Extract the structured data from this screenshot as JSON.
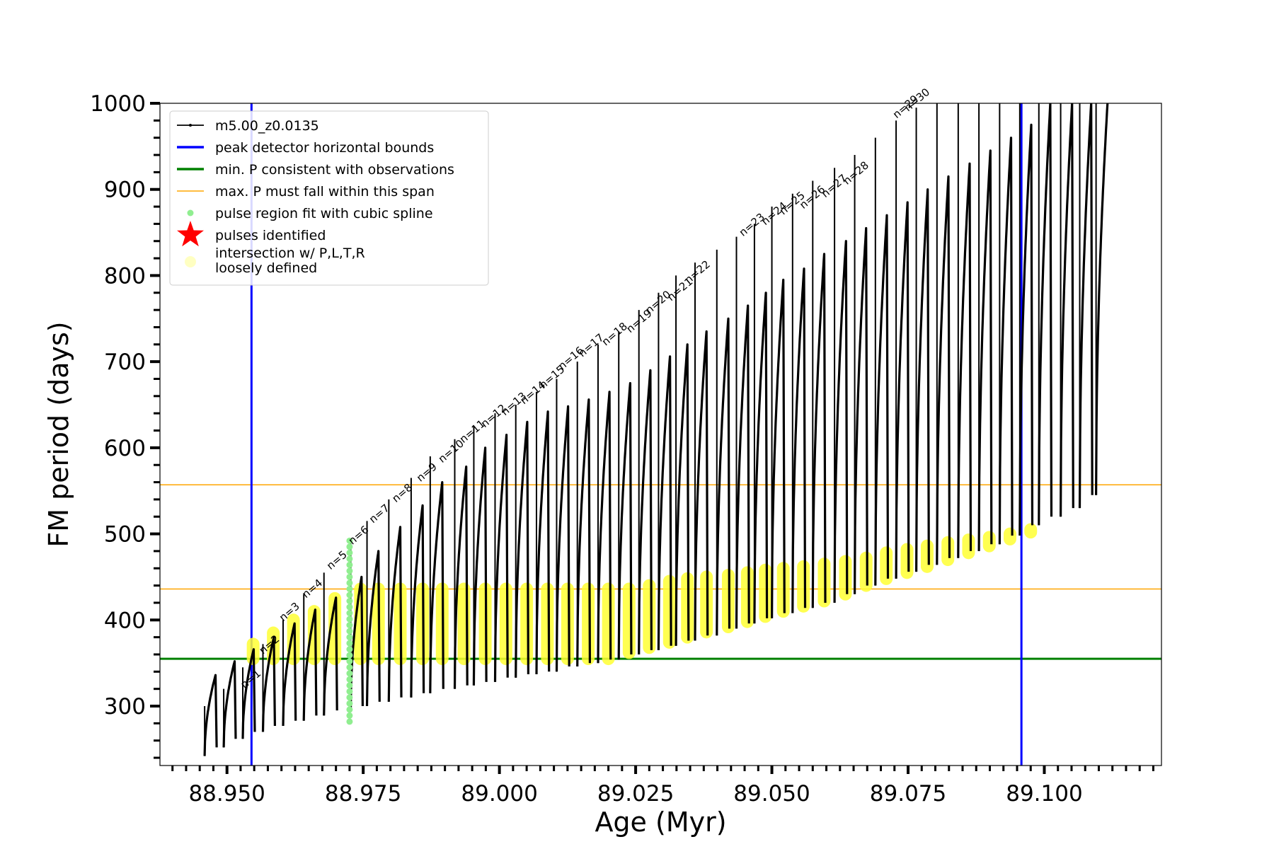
{
  "chart_data": {
    "type": "line",
    "xlabel": "Age (Myr)",
    "ylabel": "FM period (days)",
    "xlim": [
      88.9377,
      89.1215
    ],
    "ylim": [
      231,
      1000
    ],
    "xticks": [
      {
        "value": 88.95,
        "label": "88.950"
      },
      {
        "value": 88.975,
        "label": "88.975"
      },
      {
        "value": 89.0,
        "label": "89.000"
      },
      {
        "value": 89.025,
        "label": "89.025"
      },
      {
        "value": 89.05,
        "label": "89.050"
      },
      {
        "value": 89.075,
        "label": "89.075"
      },
      {
        "value": 89.1,
        "label": "89.100"
      }
    ],
    "x_minor_step": 0.0025,
    "yticks": [
      {
        "value": 300,
        "label": "300"
      },
      {
        "value": 400,
        "label": "400"
      },
      {
        "value": 500,
        "label": "500"
      },
      {
        "value": 600,
        "label": "600"
      },
      {
        "value": 700,
        "label": "700"
      },
      {
        "value": 800,
        "label": "800"
      },
      {
        "value": 900,
        "label": "900"
      },
      {
        "value": 1000,
        "label": "1000"
      }
    ],
    "y_minor_step": 20,
    "grid": false,
    "legend_position": "top-left",
    "legend": [
      {
        "label": "m5.00_z0.0135",
        "kind": "line-marker",
        "color": "#000000"
      },
      {
        "label": "peak detector horizontal bounds",
        "kind": "line",
        "color": "#0000ff"
      },
      {
        "label": "min. P consistent with observations",
        "kind": "line",
        "color": "#008000"
      },
      {
        "label": "max. P must fall within this span",
        "kind": "thin-line",
        "color": "#ffa500"
      },
      {
        "label": "pulse region fit with cubic spline",
        "kind": "dot",
        "color": "#90ee90"
      },
      {
        "label": "pulses identified",
        "kind": "star",
        "color": "#ff0000"
      },
      {
        "label": "intersection w/ P,L,T,R",
        "label2": "loosely defined",
        "kind": "circle",
        "color": "#ffff99"
      }
    ],
    "vertical_lines": [
      {
        "x": 88.9545,
        "color": "#0000ff"
      },
      {
        "x": 89.0958,
        "color": "#0000ff"
      }
    ],
    "horizontal_lines": [
      {
        "y": 355,
        "color": "#008000",
        "width": 3
      },
      {
        "y": 436,
        "color": "#ffa500",
        "width": 1.5
      },
      {
        "y": 557,
        "color": "#ffa500",
        "width": 1.5
      }
    ],
    "pulse_label_ages": [
      88.9532,
      88.9566,
      88.9603,
      88.9645,
      88.969,
      88.973,
      88.9768,
      88.981,
      88.9855,
      88.9895,
      88.9934,
      88.9973,
      89.001,
      89.0045,
      89.008,
      89.0115,
      89.0152,
      89.0195,
      89.024,
      89.0275,
      89.0315,
      89.0347,
      89.0447,
      89.0488,
      89.0521,
      89.0558,
      89.0598,
      89.0638,
      89.0729,
      89.075
    ],
    "pulse_labels": [
      "n=1",
      "n=2",
      "n=3",
      "n=4",
      "n=5",
      "n=6",
      "n=7",
      "n=8",
      "n=9",
      "n=10",
      "n=11",
      "n=12",
      "n=13",
      "n=14",
      "n=15",
      "n=16",
      "n=17",
      "n=18",
      "n=19",
      "n=20",
      "n=21",
      "n=22",
      "n=23",
      "n=24",
      "n=25",
      "n=26",
      "n=27",
      "n=28",
      "n=29",
      "n=30"
    ],
    "pulse_label_periods": [
      320,
      360,
      398,
      425,
      458,
      487,
      512,
      536,
      560,
      582,
      605,
      623,
      637,
      650,
      668,
      690,
      705,
      718,
      733,
      755,
      770,
      790,
      845,
      858,
      870,
      877,
      890,
      905,
      982,
      990
    ],
    "series": [
      {
        "name": "m5.00_z0.0135",
        "color": "#000000",
        "cycles": [
          {
            "start": 88.9459,
            "peak_age": 88.9479,
            "period_start": 242,
            "period_peak": 336,
            "spike": 300
          },
          {
            "start": 88.9494,
            "peak_age": 88.9514,
            "period_start": 252,
            "period_peak": 352,
            "spike": 320
          },
          {
            "start": 88.9529,
            "peak_age": 88.9549,
            "period_start": 262,
            "period_peak": 366,
            "spike": 345
          },
          {
            "start": 88.9566,
            "peak_age": 88.9586,
            "period_start": 270,
            "period_peak": 380,
            "spike": 372
          },
          {
            "start": 88.9603,
            "peak_age": 88.9624,
            "period_start": 277,
            "period_peak": 396,
            "spike": 400
          },
          {
            "start": 88.9641,
            "peak_age": 88.9662,
            "period_start": 283,
            "period_peak": 412,
            "spike": 430
          },
          {
            "start": 88.9678,
            "peak_age": 88.97,
            "period_start": 289,
            "period_peak": 426,
            "spike": 455
          },
          {
            "start": 88.9727,
            "peak_age": 88.9747,
            "period_start": 295,
            "period_peak": 450,
            "spike": 490
          },
          {
            "start": 88.9757,
            "peak_age": 88.9778,
            "period_start": 300,
            "period_peak": 480,
            "spike": 515
          },
          {
            "start": 88.9797,
            "peak_age": 88.9818,
            "period_start": 305,
            "period_peak": 508,
            "spike": 540
          },
          {
            "start": 88.9838,
            "peak_age": 88.9859,
            "period_start": 310,
            "period_peak": 533,
            "spike": 565
          },
          {
            "start": 88.9873,
            "peak_age": 88.9895,
            "period_start": 315,
            "period_peak": 560,
            "spike": 590
          },
          {
            "start": 88.9918,
            "peak_age": 88.9939,
            "period_start": 320,
            "period_peak": 578,
            "spike": 610
          },
          {
            "start": 88.9953,
            "peak_age": 88.9974,
            "period_start": 324,
            "period_peak": 600,
            "spike": 625
          },
          {
            "start": 88.9992,
            "peak_age": 89.0013,
            "period_start": 328,
            "period_peak": 615,
            "spike": 640
          },
          {
            "start": 89.003,
            "peak_age": 89.0051,
            "period_start": 333,
            "period_peak": 630,
            "spike": 650
          },
          {
            "start": 89.0068,
            "peak_age": 89.0089,
            "period_start": 337,
            "period_peak": 642,
            "spike": 665
          },
          {
            "start": 89.0105,
            "peak_age": 89.0126,
            "period_start": 340,
            "period_peak": 648,
            "spike": 680
          },
          {
            "start": 89.0143,
            "peak_age": 89.0164,
            "period_start": 346,
            "period_peak": 656,
            "spike": 700
          },
          {
            "start": 89.0181,
            "peak_age": 89.0202,
            "period_start": 350,
            "period_peak": 665,
            "spike": 720
          },
          {
            "start": 89.0219,
            "peak_age": 89.024,
            "period_start": 354,
            "period_peak": 675,
            "spike": 735
          },
          {
            "start": 89.0256,
            "peak_age": 89.0277,
            "period_start": 360,
            "period_peak": 690,
            "spike": 760
          },
          {
            "start": 89.0292,
            "peak_age": 89.0313,
            "period_start": 365,
            "period_peak": 706,
            "spike": 780
          },
          {
            "start": 89.0324,
            "peak_age": 89.0345,
            "period_start": 370,
            "period_peak": 720,
            "spike": 800
          },
          {
            "start": 89.0359,
            "peak_age": 89.038,
            "period_start": 376,
            "period_peak": 735,
            "spike": 815
          },
          {
            "start": 89.0399,
            "peak_age": 89.042,
            "period_start": 382,
            "period_peak": 750,
            "spike": 830
          },
          {
            "start": 89.0435,
            "peak_age": 89.0456,
            "period_start": 390,
            "period_peak": 765,
            "spike": 845
          },
          {
            "start": 89.0468,
            "peak_age": 89.0489,
            "period_start": 396,
            "period_peak": 780,
            "spike": 860
          },
          {
            "start": 89.05,
            "peak_age": 89.0521,
            "period_start": 402,
            "period_peak": 795,
            "spike": 880
          },
          {
            "start": 89.0538,
            "peak_age": 89.0559,
            "period_start": 408,
            "period_peak": 808,
            "spike": 895
          },
          {
            "start": 89.0575,
            "peak_age": 89.0596,
            "period_start": 414,
            "period_peak": 825,
            "spike": 910
          },
          {
            "start": 89.0615,
            "peak_age": 89.0636,
            "period_start": 420,
            "period_peak": 840,
            "spike": 925
          },
          {
            "start": 89.0652,
            "peak_age": 89.0673,
            "period_start": 430,
            "period_peak": 855,
            "spike": 940
          },
          {
            "start": 89.069,
            "peak_age": 89.0711,
            "period_start": 440,
            "period_peak": 870,
            "spike": 960
          },
          {
            "start": 89.0728,
            "peak_age": 89.0749,
            "period_start": 448,
            "period_peak": 885,
            "spike": 980
          },
          {
            "start": 89.0765,
            "peak_age": 89.0786,
            "period_start": 456,
            "period_peak": 900,
            "spike": 995
          },
          {
            "start": 89.0803,
            "peak_age": 89.0824,
            "period_start": 464,
            "period_peak": 915,
            "spike": 1000
          },
          {
            "start": 89.0842,
            "peak_age": 89.0863,
            "period_start": 472,
            "period_peak": 930,
            "spike": 1000
          },
          {
            "start": 89.088,
            "peak_age": 89.0901,
            "period_start": 480,
            "period_peak": 945,
            "spike": 1000
          },
          {
            "start": 89.0918,
            "peak_age": 89.0939,
            "period_start": 488,
            "period_peak": 960,
            "spike": 1000
          },
          {
            "start": 89.0955,
            "peak_age": 89.0976,
            "period_start": 498,
            "period_peak": 975,
            "spike": 1000
          },
          {
            "start": 89.099,
            "peak_age": 89.1011,
            "period_start": 510,
            "period_peak": 1000,
            "spike": 1000
          },
          {
            "start": 89.103,
            "peak_age": 89.1051,
            "period_start": 520,
            "period_peak": 1000,
            "spike": 1000
          },
          {
            "start": 89.1065,
            "peak_age": 89.1086,
            "period_start": 530,
            "period_peak": 1000,
            "spike": 1000
          },
          {
            "start": 89.1095,
            "peak_age": 89.1116,
            "period_start": 545,
            "period_peak": 1000,
            "spike": 1000
          }
        ]
      }
    ],
    "spline_region": {
      "age": 88.9725,
      "period_min": 282,
      "period_max": 492
    },
    "loose_intersections": [
      {
        "age": 88.9548,
        "pmin": 355,
        "pmax": 372
      },
      {
        "age": 88.9585,
        "pmin": 355,
        "pmax": 385
      },
      {
        "age": 88.9622,
        "pmin": 355,
        "pmax": 400
      },
      {
        "age": 88.966,
        "pmin": 355,
        "pmax": 410
      },
      {
        "age": 88.9698,
        "pmin": 355,
        "pmax": 425
      },
      {
        "age": 88.9745,
        "pmin": 355,
        "pmax": 436
      },
      {
        "age": 88.9778,
        "pmin": 355,
        "pmax": 436
      },
      {
        "age": 88.9818,
        "pmin": 355,
        "pmax": 436
      },
      {
        "age": 88.9859,
        "pmin": 355,
        "pmax": 436
      },
      {
        "age": 88.9895,
        "pmin": 355,
        "pmax": 436
      },
      {
        "age": 88.9935,
        "pmin": 355,
        "pmax": 436
      },
      {
        "age": 88.9974,
        "pmin": 355,
        "pmax": 436
      },
      {
        "age": 89.0012,
        "pmin": 355,
        "pmax": 436
      },
      {
        "age": 89.005,
        "pmin": 355,
        "pmax": 436
      },
      {
        "age": 89.0088,
        "pmin": 355,
        "pmax": 436
      },
      {
        "age": 89.0125,
        "pmin": 355,
        "pmax": 436
      },
      {
        "age": 89.0163,
        "pmin": 355,
        "pmax": 436
      },
      {
        "age": 89.02,
        "pmin": 355,
        "pmax": 436
      },
      {
        "age": 89.0238,
        "pmin": 362,
        "pmax": 436
      },
      {
        "age": 89.0275,
        "pmin": 368,
        "pmax": 440
      },
      {
        "age": 89.0312,
        "pmin": 374,
        "pmax": 445
      },
      {
        "age": 89.0345,
        "pmin": 380,
        "pmax": 448
      },
      {
        "age": 89.038,
        "pmin": 386,
        "pmax": 450
      },
      {
        "age": 89.042,
        "pmin": 392,
        "pmax": 452
      },
      {
        "age": 89.0455,
        "pmin": 398,
        "pmax": 455
      },
      {
        "age": 89.0488,
        "pmin": 404,
        "pmax": 458
      },
      {
        "age": 89.0521,
        "pmin": 410,
        "pmax": 460
      },
      {
        "age": 89.0558,
        "pmin": 416,
        "pmax": 462
      },
      {
        "age": 89.0596,
        "pmin": 422,
        "pmax": 465
      },
      {
        "age": 89.0635,
        "pmin": 430,
        "pmax": 468
      },
      {
        "age": 89.0673,
        "pmin": 440,
        "pmax": 472
      },
      {
        "age": 89.071,
        "pmin": 448,
        "pmax": 478
      },
      {
        "age": 89.0748,
        "pmin": 455,
        "pmax": 482
      },
      {
        "age": 89.0785,
        "pmin": 462,
        "pmax": 486
      },
      {
        "age": 89.0823,
        "pmin": 470,
        "pmax": 490
      },
      {
        "age": 89.0861,
        "pmin": 478,
        "pmax": 493
      },
      {
        "age": 89.0899,
        "pmin": 486,
        "pmax": 496
      },
      {
        "age": 89.0937,
        "pmin": 494,
        "pmax": 500
      },
      {
        "age": 89.0975,
        "pmin": 502,
        "pmax": 505
      }
    ]
  }
}
